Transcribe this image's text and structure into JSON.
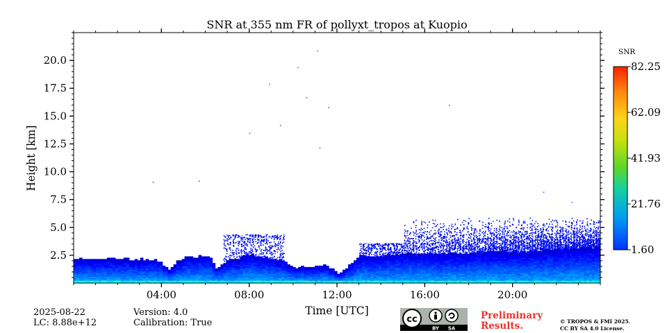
{
  "chart_data": {
    "type": "heatmap",
    "title": "SNR at 355 nm FR of pollyxt_tropos at Kuopio",
    "xlabel": "Time [UTC]",
    "ylabel": "Height [km]",
    "x_unit": "hours UTC",
    "xlim": [
      0,
      24
    ],
    "ylim": [
      0,
      22.5
    ],
    "xticks": [
      4,
      8,
      12,
      16,
      20
    ],
    "xtick_labels": [
      "04:00",
      "08:00",
      "12:00",
      "16:00",
      "20:00"
    ],
    "yticks": [
      2.5,
      5.0,
      7.5,
      10.0,
      12.5,
      15.0,
      17.5,
      20.0
    ],
    "ytick_labels": [
      "2.5",
      "5.0",
      "7.5",
      "10.0",
      "12.5",
      "15.0",
      "17.5",
      "20.0"
    ],
    "colorbar": {
      "label": "SNR",
      "min": 1.6,
      "max": 82.25,
      "ticks": [
        1.6,
        21.76,
        41.93,
        62.09,
        82.25
      ],
      "tick_labels": [
        "1.60",
        "21.76",
        "41.93",
        "62.09",
        "82.25"
      ],
      "colormap": "jet"
    },
    "signal_top_km": [
      [
        0.0,
        2.1
      ],
      [
        2.0,
        2.1
      ],
      [
        3.8,
        2.0
      ],
      [
        4.3,
        1.3
      ],
      [
        5.0,
        2.3
      ],
      [
        6.2,
        2.3
      ],
      [
        6.5,
        1.2
      ],
      [
        7.0,
        2.0
      ],
      [
        8.0,
        2.5
      ],
      [
        9.5,
        2.0
      ],
      [
        10.0,
        1.3
      ],
      [
        11.5,
        1.5
      ],
      [
        12.0,
        0.8
      ],
      [
        13.0,
        2.4
      ],
      [
        16.0,
        2.6
      ],
      [
        20.0,
        2.8
      ],
      [
        24.0,
        3.2
      ]
    ]
  },
  "footer": {
    "date": "2025-08-22",
    "lc": "LC: 8.88e+12",
    "version": "Version: 4.0",
    "calibration": "Calibration: True",
    "prelim_line1": "Preliminary",
    "prelim_line2": "Results.",
    "copyright_line1": "© TROPOS & FMI 2025.",
    "copyright_line2": "CC BY SA 4.0 License.",
    "license_badge": "cc-by-sa-icon"
  }
}
